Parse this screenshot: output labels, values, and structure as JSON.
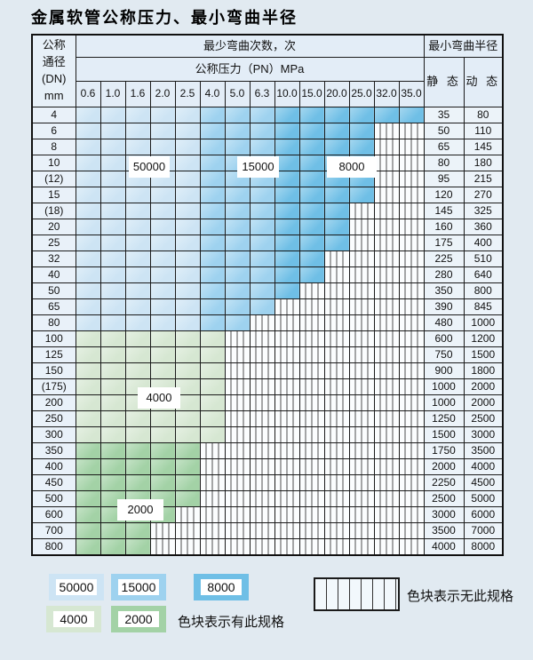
{
  "title": "金属软管公称压力、最小弯曲半径",
  "colors": {
    "blue_50000": "#cde4f4",
    "blue_15000": "#9ed2ef",
    "blue_8000": "#6fbfe6",
    "green_4000": "#d6e7d2",
    "green_2000": "#a3d2a6",
    "page_background": "#e1eaf1",
    "grid_line": "#1b1b1b"
  },
  "table": {
    "corner": [
      "公称",
      "通径",
      "(DN)",
      "mm"
    ],
    "bend_cycles_header": "最少弯曲次数，次",
    "pressure_header": "公称压力（PN）MPa",
    "radius_header": "最小弯曲半径",
    "static_header": "静 态",
    "dynamic_header": "动 态",
    "pressure_columns": [
      "0.6",
      "1.0",
      "1.6",
      "2.0",
      "2.5",
      "4.0",
      "5.0",
      "6.3",
      "10.0",
      "15.0",
      "20.0",
      "25.0",
      "32.0",
      "35.0"
    ],
    "rows": [
      {
        "dn": "4",
        "static": "35",
        "dynamic": "80",
        "colored_cols": 14,
        "palette": "blue"
      },
      {
        "dn": "6",
        "static": "50",
        "dynamic": "110",
        "colored_cols": 12,
        "palette": "blue"
      },
      {
        "dn": "8",
        "static": "65",
        "dynamic": "145",
        "colored_cols": 12,
        "palette": "blue"
      },
      {
        "dn": "10",
        "static": "80",
        "dynamic": "180",
        "colored_cols": 12,
        "palette": "blue"
      },
      {
        "dn": "(12)",
        "static": "95",
        "dynamic": "215",
        "colored_cols": 12,
        "palette": "blue"
      },
      {
        "dn": "15",
        "static": "120",
        "dynamic": "270",
        "colored_cols": 12,
        "palette": "blue"
      },
      {
        "dn": "(18)",
        "static": "145",
        "dynamic": "325",
        "colored_cols": 11,
        "palette": "blue"
      },
      {
        "dn": "20",
        "static": "160",
        "dynamic": "360",
        "colored_cols": 11,
        "palette": "blue"
      },
      {
        "dn": "25",
        "static": "175",
        "dynamic": "400",
        "colored_cols": 11,
        "palette": "blue"
      },
      {
        "dn": "32",
        "static": "225",
        "dynamic": "510",
        "colored_cols": 10,
        "palette": "blue"
      },
      {
        "dn": "40",
        "static": "280",
        "dynamic": "640",
        "colored_cols": 10,
        "palette": "blue"
      },
      {
        "dn": "50",
        "static": "350",
        "dynamic": "800",
        "colored_cols": 9,
        "palette": "blue"
      },
      {
        "dn": "65",
        "static": "390",
        "dynamic": "845",
        "colored_cols": 8,
        "palette": "blue"
      },
      {
        "dn": "80",
        "static": "480",
        "dynamic": "1000",
        "colored_cols": 7,
        "palette": "blue"
      },
      {
        "dn": "100",
        "static": "600",
        "dynamic": "1200",
        "colored_cols": 6,
        "palette": "g1"
      },
      {
        "dn": "125",
        "static": "750",
        "dynamic": "1500",
        "colored_cols": 6,
        "palette": "g1"
      },
      {
        "dn": "150",
        "static": "900",
        "dynamic": "1800",
        "colored_cols": 6,
        "palette": "g1"
      },
      {
        "dn": "(175)",
        "static": "1000",
        "dynamic": "2000",
        "colored_cols": 6,
        "palette": "g1"
      },
      {
        "dn": "200",
        "static": "1000",
        "dynamic": "2000",
        "colored_cols": 6,
        "palette": "g1"
      },
      {
        "dn": "250",
        "static": "1250",
        "dynamic": "2500",
        "colored_cols": 6,
        "palette": "g1"
      },
      {
        "dn": "300",
        "static": "1500",
        "dynamic": "3000",
        "colored_cols": 6,
        "palette": "g1"
      },
      {
        "dn": "350",
        "static": "1750",
        "dynamic": "3500",
        "colored_cols": 5,
        "palette": "g2"
      },
      {
        "dn": "400",
        "static": "2000",
        "dynamic": "4000",
        "colored_cols": 5,
        "palette": "g2"
      },
      {
        "dn": "450",
        "static": "2250",
        "dynamic": "4500",
        "colored_cols": 5,
        "palette": "g2"
      },
      {
        "dn": "500",
        "static": "2500",
        "dynamic": "5000",
        "colored_cols": 5,
        "palette": "g2"
      },
      {
        "dn": "600",
        "static": "3000",
        "dynamic": "6000",
        "colored_cols": 4,
        "palette": "g2"
      },
      {
        "dn": "700",
        "static": "3500",
        "dynamic": "7000",
        "colored_cols": 3,
        "palette": "g2"
      },
      {
        "dn": "800",
        "static": "4000",
        "dynamic": "8000",
        "colored_cols": 3,
        "palette": "g2"
      }
    ]
  },
  "zone_labels": [
    {
      "text": "50000"
    },
    {
      "text": "15000"
    },
    {
      "text": "8000"
    },
    {
      "text": "4000"
    },
    {
      "text": "2000"
    }
  ],
  "legend": {
    "has_spec_swatches": [
      {
        "value": "50000",
        "color": "#cde4f4"
      },
      {
        "value": "15000",
        "color": "#9ed2ef"
      },
      {
        "value": "8000",
        "color": "#6fbfe6"
      },
      {
        "value": "4000",
        "color": "#d6e7d2"
      },
      {
        "value": "2000",
        "color": "#a3d2a6"
      }
    ],
    "has_spec_text": "色块表示有此规格",
    "no_spec_text": "色块表示无此规格"
  }
}
